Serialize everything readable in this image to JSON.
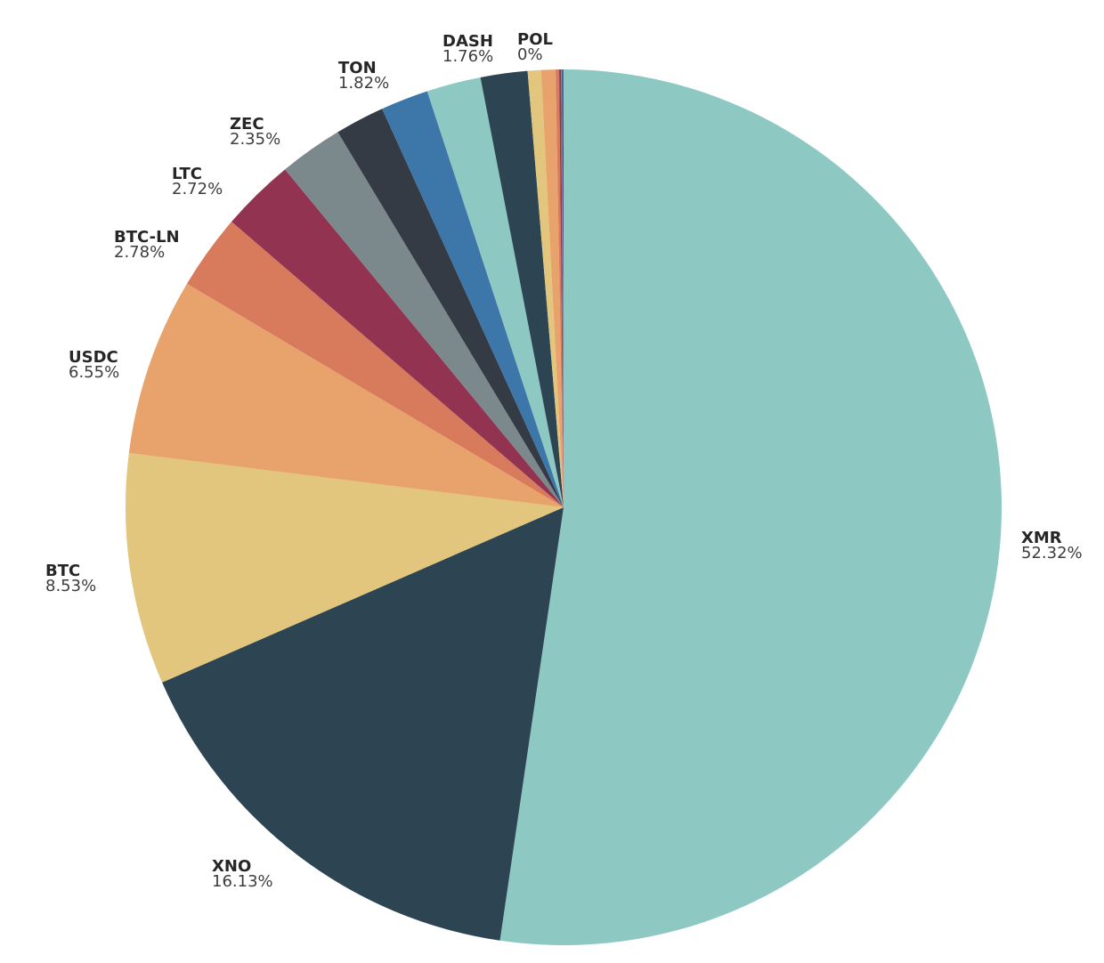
{
  "chart_data": {
    "type": "pie",
    "title": "",
    "unit": "%",
    "start": "top",
    "direction": "clockwise",
    "background_color": "#ffffff",
    "legend": "none",
    "label_name_color": "#262626",
    "label_value_color": "#3d3d3d",
    "slices": [
      {
        "label": "XMR",
        "value": 52.32,
        "display": "52.32%",
        "color": "#8ec8c3"
      },
      {
        "label": "XNO",
        "value": 16.13,
        "display": "16.13%",
        "color": "#2d4552"
      },
      {
        "label": "BTC",
        "value": 8.53,
        "display": "8.53%",
        "color": "#e2c67e"
      },
      {
        "label": "USDC",
        "value": 6.55,
        "display": "6.55%",
        "color": "#e8a36c"
      },
      {
        "label": "BTC-LN",
        "value": 2.78,
        "display": "2.78%",
        "color": "#d87a5c"
      },
      {
        "label": "LTC",
        "value": 2.72,
        "display": "2.72%",
        "color": "#913351"
      },
      {
        "label": "ZEC",
        "value": 2.35,
        "display": "2.35%",
        "color": "#7b898d"
      },
      {
        "label": "TON",
        "value": 1.82,
        "display": "1.82%",
        "color": "#343b44"
      },
      {
        "label": "DASH",
        "value": 1.76,
        "display": "1.76%",
        "color": "#3d76a8"
      },
      {
        "label": "",
        "value": 2.0,
        "display": "",
        "color": "#8ec8c3"
      },
      {
        "label": "",
        "value": 1.73,
        "display": "",
        "color": "#2d4552"
      },
      {
        "label": "",
        "value": 0.49,
        "display": "",
        "color": "#e2c67e"
      },
      {
        "label": "",
        "value": 0.53,
        "display": "",
        "color": "#e8a36c"
      },
      {
        "label": "",
        "value": 0.13,
        "display": "",
        "color": "#d87a5c"
      },
      {
        "label": "",
        "value": 0.07,
        "display": "",
        "color": "#913351"
      },
      {
        "label": "",
        "value": 0.04,
        "display": "",
        "color": "#7b898d"
      },
      {
        "label": "",
        "value": 0.03,
        "display": "",
        "color": "#343b44"
      },
      {
        "label": "",
        "value": 0.02,
        "display": "",
        "color": "#3d76a8"
      },
      {
        "label": "POL",
        "value": 0,
        "display": "0%",
        "color": "#8ec8c3"
      }
    ]
  }
}
